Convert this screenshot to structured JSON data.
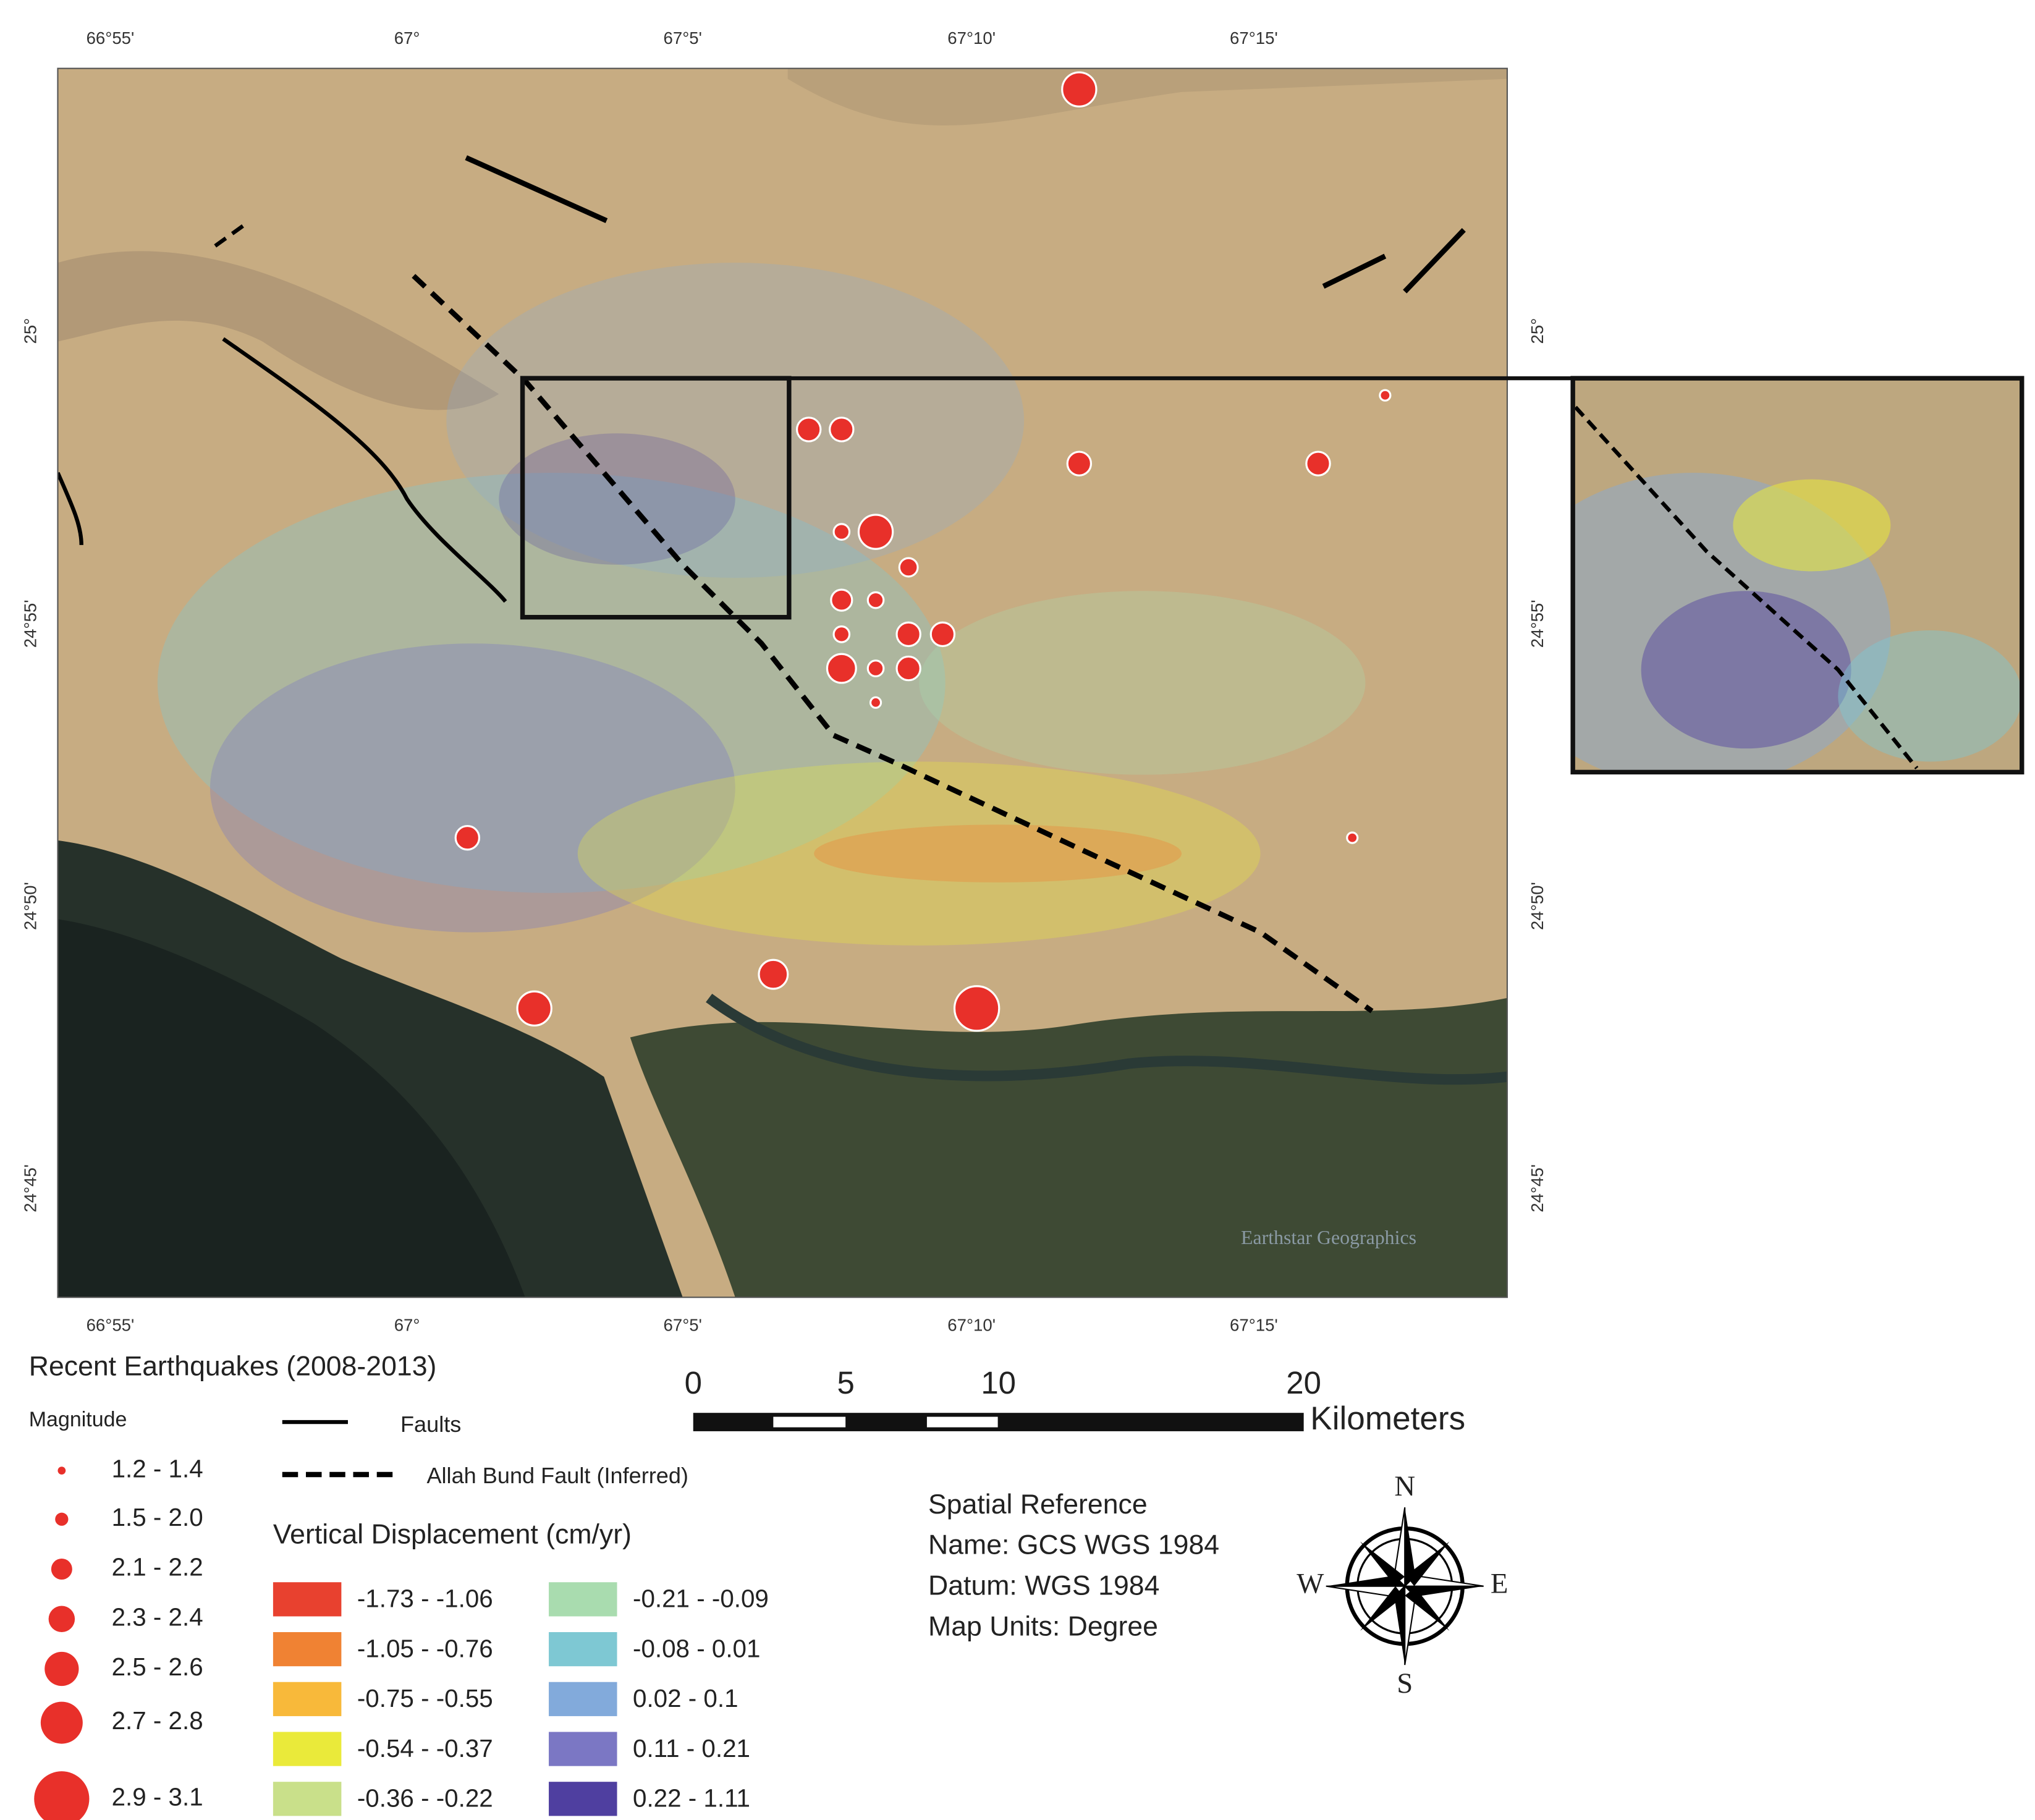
{
  "map": {
    "attribution": "Earthstar Geographics",
    "top_ticks": [
      "66°55'",
      "67°",
      "67°5'",
      "67°10'",
      "67°15'"
    ],
    "bottom_ticks": [
      "66°55'",
      "67°",
      "67°5'",
      "67°10'",
      "67°15'"
    ],
    "left_ticks": [
      "25°",
      "24°55'",
      "24°50'",
      "24°45'"
    ],
    "right_ticks": [
      "25°",
      "24°55'",
      "24°50'",
      "24°45'"
    ]
  },
  "legend": {
    "earthquakes_title": "Recent Earthquakes (2008-2013)",
    "magnitude_title": "Magnitude",
    "magnitude_classes": [
      "1.2 - 1.4",
      "1.5 - 2.0",
      "2.1 - 2.2",
      "2.3 - 2.4",
      "2.5 - 2.6",
      "2.7 - 2.8",
      "2.9 - 3.1"
    ],
    "faults": "Faults",
    "inferred_fault": "Allah Bund Fault (Inferred)",
    "displacement_title": "Vertical Displacement (cm/yr)",
    "displacement_classes": [
      {
        "label": "-1.73 - -1.06",
        "color": "#e8412f"
      },
      {
        "label": "-1.05 - -0.76",
        "color": "#f08233"
      },
      {
        "label": "-0.75 - -0.55",
        "color": "#f8b93a"
      },
      {
        "label": "-0.54 - -0.37",
        "color": "#eaea3a"
      },
      {
        "label": "-0.36 - -0.22",
        "color": "#c9e08a"
      },
      {
        "label": "-0.21 - -0.09",
        "color": "#a9dcaf"
      },
      {
        "label": "-0.08 - 0.01",
        "color": "#7ec8d3"
      },
      {
        "label": "0.02 - 0.1",
        "color": "#82aadb"
      },
      {
        "label": "0.11 - 0.21",
        "color": "#7b77c4"
      },
      {
        "label": "0.22 - 1.11",
        "color": "#4f3fa0"
      }
    ]
  },
  "scale_bar": {
    "ticks": [
      0,
      5,
      10,
      20
    ],
    "unit": "Kilometers"
  },
  "spatial_reference": {
    "title": "Spatial Reference",
    "lines": [
      "Name: GCS WGS 1984",
      "Datum: WGS 1984",
      "Map Units: Degree"
    ]
  },
  "compass": {
    "n": "N",
    "e": "E",
    "s": "S",
    "w": "W"
  }
}
